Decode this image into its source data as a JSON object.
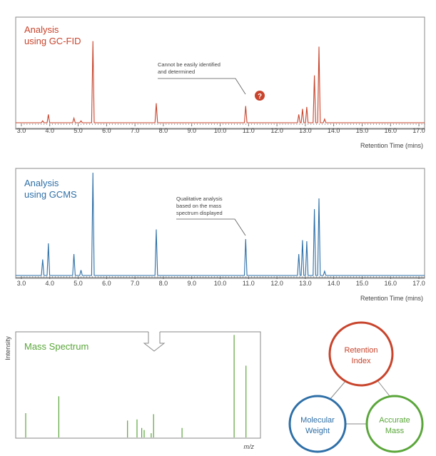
{
  "colors": {
    "fid": "#c8442c",
    "gcms": "#2e6fa7",
    "mass": "#5aa63a",
    "frame": "#8a8a8a",
    "axis": "#555555",
    "text": "#444444"
  },
  "icons": {
    "question": "question-mark-badge-icon",
    "arrow": "down-arrow-icon"
  },
  "fid_panel": {
    "title_line1": "Analysis",
    "title_line2": "using GC-FID",
    "annotation_line1": "Cannot be easily identified",
    "annotation_line2": "and determined",
    "question_mark": "?"
  },
  "gcms_panel": {
    "title_line1": "Analysis",
    "title_line2": "using GCMS",
    "annotation_line1": "Qualitative analysis",
    "annotation_line2": "based on the mass",
    "annotation_line3": "spectrum displayed"
  },
  "mass_panel": {
    "title": "Mass Spectrum",
    "ylabel": "Intensity",
    "xlabel": "m/z"
  },
  "venn": {
    "top_line1": "Retention",
    "top_line2": "Index",
    "left_line1": "Molecular",
    "left_line2": "Weight",
    "right_line1": "Accurate",
    "right_line2": "Mass"
  },
  "chart_data": [
    {
      "type": "line",
      "name": "gc-fid-chromatogram",
      "title": "Analysis using GC-FID",
      "xlabel": "Retention Time (mins)",
      "xlim": [
        2.8,
        17.2
      ],
      "ylim": [
        0,
        1.0
      ],
      "xticks": [
        "3.0",
        "4.0",
        "5.0",
        "6.0",
        "7.0",
        "8.0",
        "9.0",
        "10.0",
        "11.0",
        "12.0",
        "13.0",
        "14.0",
        "15.0",
        "16.0",
        "17.0"
      ],
      "peaks": [
        {
          "rt": 3.75,
          "h": 0.02
        },
        {
          "rt": 3.95,
          "h": 0.09
        },
        {
          "rt": 4.85,
          "h": 0.05
        },
        {
          "rt": 5.1,
          "h": 0.02
        },
        {
          "rt": 5.52,
          "h": 0.88
        },
        {
          "rt": 7.75,
          "h": 0.21
        },
        {
          "rt": 10.9,
          "h": 0.18
        },
        {
          "rt": 12.77,
          "h": 0.09
        },
        {
          "rt": 12.9,
          "h": 0.15
        },
        {
          "rt": 13.05,
          "h": 0.17
        },
        {
          "rt": 13.32,
          "h": 0.51
        },
        {
          "rt": 13.48,
          "h": 0.82
        },
        {
          "rt": 13.68,
          "h": 0.04
        }
      ]
    },
    {
      "type": "line",
      "name": "gcms-chromatogram",
      "title": "Analysis using GCMS",
      "xlabel": "Retention Time (mins)",
      "xlim": [
        2.8,
        17.2
      ],
      "ylim": [
        0,
        1.0
      ],
      "xticks": [
        "3.0",
        "4.0",
        "5.0",
        "6.0",
        "7.0",
        "8.0",
        "9.0",
        "10.0",
        "11.0",
        "12.0",
        "13.0",
        "14.0",
        "15.0",
        "16.0",
        "17.0"
      ],
      "peaks": [
        {
          "rt": 3.75,
          "h": 0.15
        },
        {
          "rt": 3.95,
          "h": 0.3
        },
        {
          "rt": 4.85,
          "h": 0.2
        },
        {
          "rt": 5.1,
          "h": 0.05
        },
        {
          "rt": 5.52,
          "h": 0.96
        },
        {
          "rt": 7.75,
          "h": 0.43
        },
        {
          "rt": 10.9,
          "h": 0.34
        },
        {
          "rt": 12.77,
          "h": 0.2
        },
        {
          "rt": 12.9,
          "h": 0.33
        },
        {
          "rt": 13.05,
          "h": 0.32
        },
        {
          "rt": 13.32,
          "h": 0.62
        },
        {
          "rt": 13.48,
          "h": 0.72
        },
        {
          "rt": 13.68,
          "h": 0.04
        }
      ]
    },
    {
      "type": "bar",
      "name": "mass-spectrum",
      "title": "Mass Spectrum",
      "xlabel": "m/z",
      "ylabel": "Intensity",
      "xlim": [
        0,
        100
      ],
      "ylim": [
        0,
        1.0
      ],
      "sticks": [
        {
          "x": 3,
          "h": 0.23
        },
        {
          "x": 17,
          "h": 0.39
        },
        {
          "x": 46,
          "h": 0.16
        },
        {
          "x": 50,
          "h": 0.17
        },
        {
          "x": 52,
          "h": 0.09
        },
        {
          "x": 53,
          "h": 0.07
        },
        {
          "x": 56,
          "h": 0.04
        },
        {
          "x": 57,
          "h": 0.22
        },
        {
          "x": 69,
          "h": 0.09
        },
        {
          "x": 91,
          "h": 0.97
        },
        {
          "x": 96,
          "h": 0.68
        }
      ]
    }
  ]
}
